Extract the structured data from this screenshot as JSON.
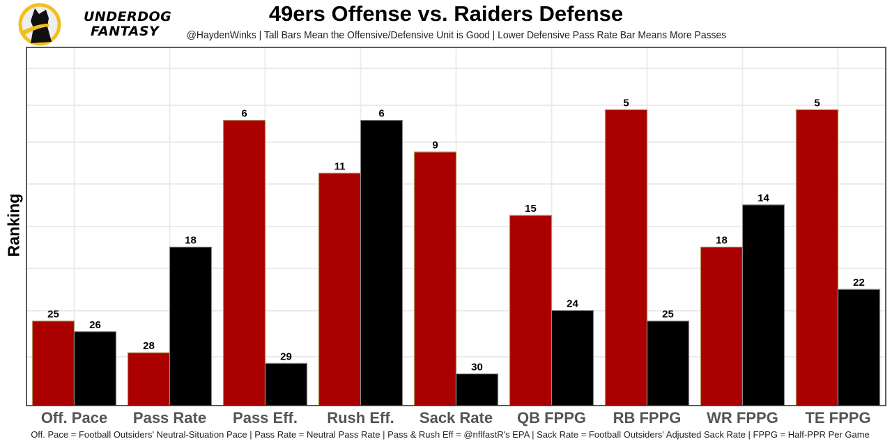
{
  "brand": {
    "line1": "UNDERDOG",
    "line2": "FANTASY",
    "logo_icon": "dog-icon",
    "accent_color": "#f2c01e"
  },
  "colors": {
    "offense": "#aa0000",
    "defense": "#000000",
    "offense_border": "#b5935a",
    "defense_border": "#8a8a8a"
  },
  "chart_data": {
    "type": "bar",
    "title": "49ers Offense vs. Raiders Defense",
    "subtitle": "@HaydenWinks | Tall Bars Mean the Offensive/Defensive Unit is Good | Lower Defensive Pass Rate Bar Means More Passes",
    "xlabel": "",
    "ylabel": "Ranking",
    "footer": "Off. Pace = Football Outsiders' Neutral-Situation Pace | Pass Rate = Neutral Pass Rate | Pass & Rush Eff = @nflfastR's EPA | Sack Rate = Football Outsiders' Adjusted Sack Rate | FPPG = Half-PPR Per Game",
    "categories": [
      "Off. Pace",
      "Pass Rate",
      "Pass Eff.",
      "Rush Eff.",
      "Sack Rate",
      "QB FPPG",
      "RB FPPG",
      "WR FPPG",
      "TE FPPG"
    ],
    "series": [
      {
        "name": "49ers Offense",
        "values": [
          25,
          28,
          6,
          11,
          9,
          15,
          5,
          18,
          5
        ]
      },
      {
        "name": "Raiders Defense",
        "values": [
          26,
          18,
          29,
          6,
          30,
          24,
          25,
          14,
          22
        ]
      }
    ],
    "y_scale": "inverted rank (rank 1 tallest)",
    "ylim": [
      33,
      0
    ],
    "grid": true,
    "legend": "none"
  }
}
